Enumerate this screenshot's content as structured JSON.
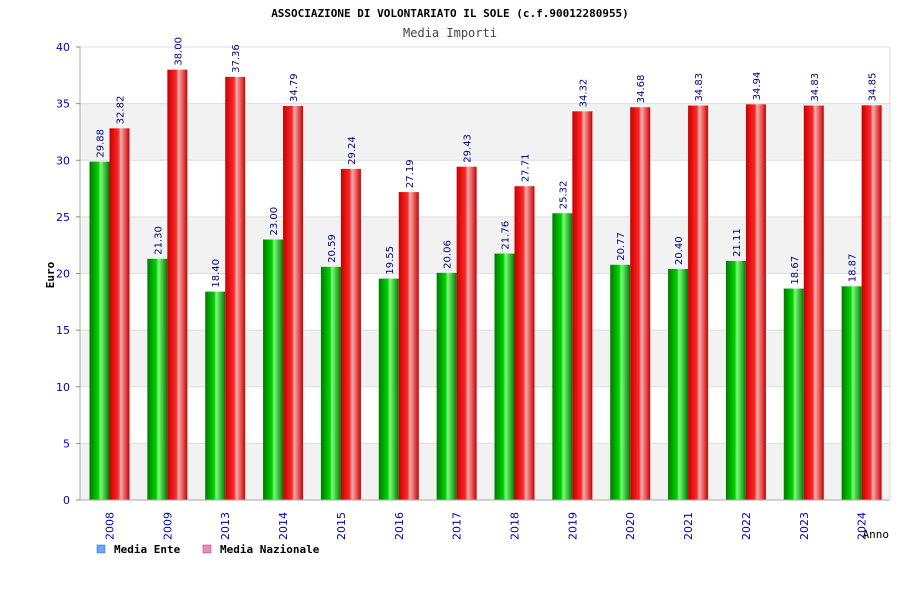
{
  "chart_data": {
    "type": "bar",
    "title": "ASSOCIAZIONE DI VOLONTARIATO IL SOLE (c.f.90012280955)",
    "subtitle": "Media Importi",
    "xlabel": "Anno",
    "ylabel": "Euro",
    "ylim": [
      0,
      40
    ],
    "yticks": [
      0,
      5,
      10,
      15,
      20,
      25,
      30,
      35,
      40
    ],
    "grid": true,
    "legend_position": "bottom-left",
    "categories": [
      "2008",
      "2009",
      "2013",
      "2014",
      "2015",
      "2016",
      "2017",
      "2018",
      "2019",
      "2020",
      "2021",
      "2022",
      "2023",
      "2024"
    ],
    "series": [
      {
        "name": "Media Ente",
        "values": [
          29.88,
          21.3,
          18.4,
          23.0,
          20.59,
          19.55,
          20.06,
          21.76,
          25.32,
          20.77,
          20.4,
          21.11,
          18.67,
          18.87
        ],
        "labels": [
          "29.88",
          "21.30",
          "18.40",
          "23.00",
          "20.59",
          "19.55",
          "20.06",
          "21.76",
          "25.32",
          "20.77",
          "20.40",
          "21.11",
          "18.67",
          "18.87"
        ],
        "color": "#00c800",
        "legend_color": "#6aa8f0"
      },
      {
        "name": "Media Nazionale",
        "values": [
          32.82,
          38.0,
          37.36,
          34.79,
          29.24,
          27.19,
          29.43,
          27.71,
          34.32,
          34.68,
          34.83,
          34.94,
          34.83,
          34.85
        ],
        "labels": [
          "32.82",
          "38.00",
          "37.36",
          "34.79",
          "29.24",
          "27.19",
          "29.43",
          "27.71",
          "34.32",
          "34.68",
          "34.83",
          "34.94",
          "34.83",
          "34.85"
        ],
        "color": "#ff1a1a",
        "legend_color": "#e890b8"
      }
    ]
  },
  "colors": {
    "tick_text": "#0000c0",
    "value_label": "#000080",
    "title_text": "#000000",
    "subtitle_text": "#444444",
    "band": "#f2f2f2",
    "grid": "#dddddd"
  }
}
